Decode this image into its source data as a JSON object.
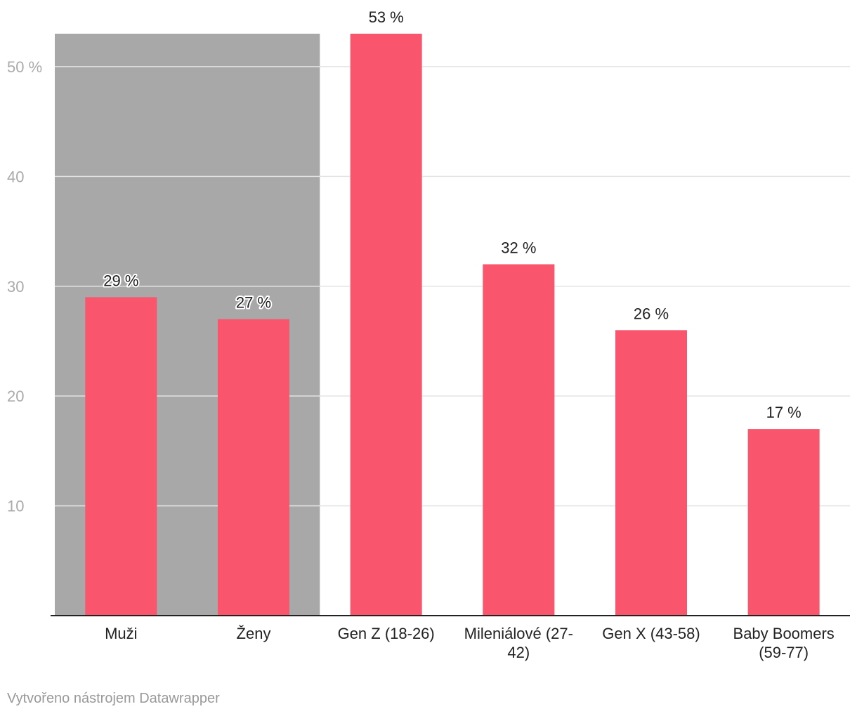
{
  "chart_data": {
    "type": "bar",
    "categories": [
      "Muži",
      "Ženy",
      "Gen Z (18-26)",
      "Mileniálové (27-42)",
      "Gen X (43-58)",
      "Baby Boomers (59-77)"
    ],
    "category_lines": [
      [
        "Muži"
      ],
      [
        "Ženy"
      ],
      [
        "Gen Z (18-26)"
      ],
      [
        "Mileniálové (27-",
        "42)"
      ],
      [
        "Gen X (43-58)"
      ],
      [
        "Baby Boomers",
        "(59-77)"
      ]
    ],
    "values": [
      29,
      27,
      53,
      32,
      26,
      17
    ],
    "value_labels": [
      "29 %",
      "27 %",
      "53 %",
      "32 %",
      "26 %",
      "17 %"
    ],
    "ylim": [
      0,
      53
    ],
    "yticks": [
      10,
      20,
      30,
      40,
      50
    ],
    "ytick_labels": [
      "10",
      "20",
      "30",
      "40",
      "50 %"
    ],
    "grid": true,
    "highlight_categories": [
      "Muži",
      "Ženy"
    ],
    "colors": {
      "bar": "#f9566e",
      "highlight_bg": "#a8a8a8",
      "grid": "#e3e3e3",
      "axis": "#222222"
    }
  },
  "footer": {
    "credit": "Vytvořeno nástrojem Datawrapper"
  }
}
